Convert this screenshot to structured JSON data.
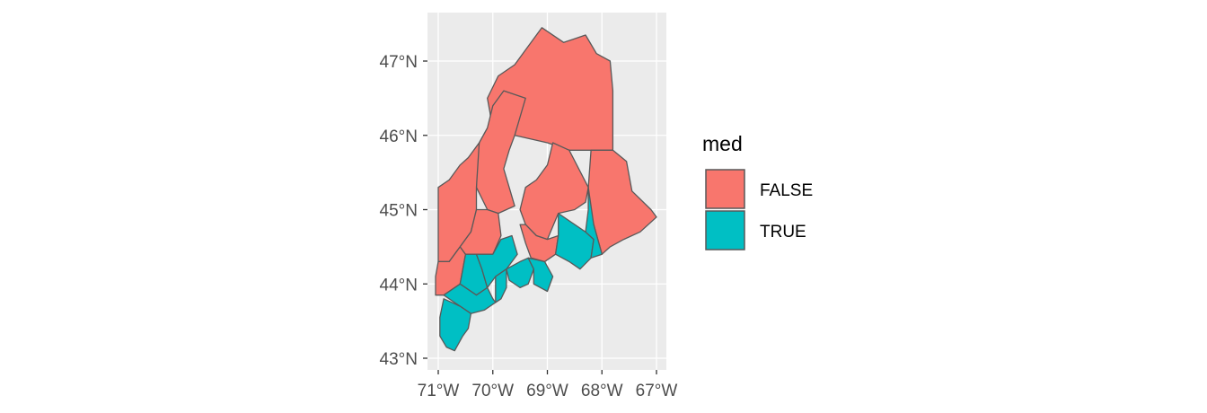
{
  "chart_data": {
    "type": "map",
    "xlim": [
      -71.2,
      -66.9
    ],
    "ylim": [
      42.95,
      47.55
    ],
    "x_ticks": [
      {
        "value": -71,
        "label": "71°W"
      },
      {
        "value": -70,
        "label": "70°W"
      },
      {
        "value": -69,
        "label": "69°W"
      },
      {
        "value": -68,
        "label": "68°W"
      },
      {
        "value": -67,
        "label": "67°W"
      }
    ],
    "y_ticks": [
      {
        "value": 43,
        "label": "43°N"
      },
      {
        "value": 44,
        "label": "44°N"
      },
      {
        "value": 45,
        "label": "45°N"
      },
      {
        "value": 46,
        "label": "46°N"
      },
      {
        "value": 47,
        "label": "47°N"
      }
    ],
    "grid": true,
    "panel_background": "#ebebeb",
    "grid_color": "#ffffff",
    "border_color": "#595959",
    "legend": {
      "title": "med",
      "position": "right",
      "entries": [
        {
          "label": "FALSE",
          "color": "#F8766D"
        },
        {
          "label": "TRUE",
          "color": "#00BFC4"
        }
      ]
    },
    "regions": [
      {
        "med": false,
        "coords": [
          [
            -69.1,
            47.45
          ],
          [
            -68.7,
            47.25
          ],
          [
            -68.3,
            47.35
          ],
          [
            -68.1,
            47.1
          ],
          [
            -67.85,
            47.0
          ],
          [
            -67.8,
            46.6
          ],
          [
            -67.8,
            45.8
          ],
          [
            -68.2,
            45.8
          ],
          [
            -68.6,
            45.8
          ],
          [
            -69.0,
            45.9
          ],
          [
            -69.3,
            45.95
          ],
          [
            -69.6,
            46.0
          ],
          [
            -70.0,
            45.95
          ],
          [
            -70.05,
            46.3
          ],
          [
            -70.1,
            46.5
          ],
          [
            -69.9,
            46.8
          ],
          [
            -69.6,
            46.95
          ],
          [
            -69.3,
            47.25
          ]
        ]
      },
      {
        "med": false,
        "coords": [
          [
            -67.8,
            45.8
          ],
          [
            -67.55,
            45.65
          ],
          [
            -67.45,
            45.25
          ],
          [
            -67.1,
            45.0
          ],
          [
            -67.0,
            44.9
          ],
          [
            -67.3,
            44.7
          ],
          [
            -67.6,
            44.6
          ],
          [
            -67.85,
            44.5
          ],
          [
            -68.0,
            44.4
          ],
          [
            -68.15,
            44.8
          ],
          [
            -68.25,
            45.0
          ],
          [
            -68.25,
            45.3
          ],
          [
            -68.2,
            45.8
          ]
        ]
      },
      {
        "med": false,
        "coords": [
          [
            -68.6,
            45.8
          ],
          [
            -68.25,
            45.3
          ],
          [
            -68.3,
            45.1
          ],
          [
            -68.5,
            45.0
          ],
          [
            -68.8,
            44.95
          ],
          [
            -69.0,
            44.6
          ],
          [
            -69.2,
            44.65
          ],
          [
            -69.4,
            44.8
          ],
          [
            -69.5,
            45.0
          ],
          [
            -69.4,
            45.3
          ],
          [
            -69.2,
            45.4
          ],
          [
            -69.0,
            45.6
          ],
          [
            -68.9,
            45.9
          ]
        ]
      },
      {
        "med": false,
        "coords": [
          [
            -69.4,
            46.5
          ],
          [
            -69.6,
            46.0
          ],
          [
            -69.7,
            45.8
          ],
          [
            -69.8,
            45.55
          ],
          [
            -69.7,
            45.3
          ],
          [
            -69.6,
            45.05
          ],
          [
            -69.9,
            44.95
          ],
          [
            -70.1,
            45.0
          ],
          [
            -70.3,
            45.3
          ],
          [
            -70.3,
            45.7
          ],
          [
            -70.25,
            45.9
          ],
          [
            -70.1,
            46.1
          ],
          [
            -70.0,
            46.4
          ],
          [
            -69.8,
            46.6
          ]
        ]
      },
      {
        "med": false,
        "coords": [
          [
            -71.0,
            45.3
          ],
          [
            -70.8,
            45.4
          ],
          [
            -70.6,
            45.6
          ],
          [
            -70.45,
            45.7
          ],
          [
            -70.25,
            45.9
          ],
          [
            -70.3,
            45.3
          ],
          [
            -70.3,
            45.0
          ],
          [
            -70.4,
            44.7
          ],
          [
            -70.6,
            44.5
          ],
          [
            -70.8,
            44.3
          ],
          [
            -71.0,
            44.3
          ]
        ]
      },
      {
        "med": false,
        "coords": [
          [
            -71.0,
            44.3
          ],
          [
            -70.8,
            44.3
          ],
          [
            -70.6,
            44.5
          ],
          [
            -70.5,
            44.4
          ],
          [
            -70.6,
            44.0
          ],
          [
            -70.9,
            43.85
          ],
          [
            -71.05,
            43.85
          ],
          [
            -71.05,
            44.1
          ]
        ]
      },
      {
        "med": false,
        "coords": [
          [
            -70.3,
            45.0
          ],
          [
            -70.1,
            45.0
          ],
          [
            -69.9,
            44.95
          ],
          [
            -69.85,
            44.65
          ],
          [
            -70.0,
            44.4
          ],
          [
            -70.3,
            44.4
          ],
          [
            -70.5,
            44.4
          ],
          [
            -70.6,
            44.5
          ],
          [
            -70.4,
            44.7
          ]
        ]
      },
      {
        "med": true,
        "coords": [
          [
            -70.5,
            44.4
          ],
          [
            -70.3,
            44.4
          ],
          [
            -70.2,
            44.2
          ],
          [
            -70.1,
            43.95
          ],
          [
            -70.3,
            43.85
          ],
          [
            -70.6,
            44.0
          ]
        ]
      },
      {
        "med": true,
        "coords": [
          [
            -70.3,
            44.4
          ],
          [
            -70.0,
            44.4
          ],
          [
            -69.85,
            44.6
          ],
          [
            -69.65,
            44.65
          ],
          [
            -69.55,
            44.4
          ],
          [
            -69.75,
            44.2
          ],
          [
            -69.95,
            44.1
          ],
          [
            -70.1,
            43.95
          ],
          [
            -70.2,
            44.2
          ]
        ]
      },
      {
        "med": true,
        "coords": [
          [
            -70.6,
            44.0
          ],
          [
            -70.3,
            43.85
          ],
          [
            -70.1,
            43.95
          ],
          [
            -70.0,
            43.8
          ],
          [
            -69.95,
            43.75
          ],
          [
            -70.15,
            43.65
          ],
          [
            -70.4,
            43.6
          ],
          [
            -70.6,
            43.7
          ],
          [
            -70.9,
            43.85
          ]
        ]
      },
      {
        "med": true,
        "coords": [
          [
            -70.9,
            43.8
          ],
          [
            -70.6,
            43.7
          ],
          [
            -70.4,
            43.6
          ],
          [
            -70.45,
            43.4
          ],
          [
            -70.55,
            43.3
          ],
          [
            -70.7,
            43.1
          ],
          [
            -70.85,
            43.15
          ],
          [
            -70.97,
            43.3
          ],
          [
            -70.97,
            43.55
          ]
        ]
      },
      {
        "med": true,
        "coords": [
          [
            -69.95,
            44.1
          ],
          [
            -69.75,
            44.2
          ],
          [
            -69.75,
            43.95
          ],
          [
            -69.85,
            43.8
          ],
          [
            -69.95,
            43.75
          ]
        ]
      },
      {
        "med": true,
        "coords": [
          [
            -69.5,
            44.3
          ],
          [
            -69.35,
            44.35
          ],
          [
            -69.25,
            44.2
          ],
          [
            -69.35,
            44.0
          ],
          [
            -69.5,
            43.95
          ],
          [
            -69.7,
            44.05
          ],
          [
            -69.75,
            44.2
          ]
        ]
      },
      {
        "med": true,
        "coords": [
          [
            -69.35,
            44.35
          ],
          [
            -69.05,
            44.3
          ],
          [
            -68.9,
            44.1
          ],
          [
            -69.0,
            43.9
          ],
          [
            -69.25,
            44.0
          ],
          [
            -69.25,
            44.2
          ]
        ]
      },
      {
        "med": false,
        "coords": [
          [
            -69.5,
            44.8
          ],
          [
            -69.4,
            44.55
          ],
          [
            -69.3,
            44.35
          ],
          [
            -69.05,
            44.3
          ],
          [
            -68.85,
            44.4
          ],
          [
            -68.8,
            44.65
          ],
          [
            -69.0,
            44.6
          ],
          [
            -69.2,
            44.65
          ],
          [
            -69.4,
            44.8
          ]
        ]
      },
      {
        "med": true,
        "coords": [
          [
            -68.8,
            44.65
          ],
          [
            -68.85,
            44.4
          ],
          [
            -68.6,
            44.3
          ],
          [
            -68.4,
            44.2
          ],
          [
            -68.2,
            44.35
          ],
          [
            -68.15,
            44.6
          ],
          [
            -68.3,
            44.7
          ],
          [
            -68.5,
            44.8
          ],
          [
            -68.8,
            44.95
          ]
        ]
      },
      {
        "med": true,
        "coords": [
          [
            -68.25,
            45.3
          ],
          [
            -68.15,
            44.8
          ],
          [
            -68.0,
            44.4
          ],
          [
            -68.2,
            44.35
          ],
          [
            -68.15,
            44.6
          ],
          [
            -68.3,
            44.7
          ],
          [
            -68.25,
            45.0
          ]
        ]
      }
    ]
  }
}
